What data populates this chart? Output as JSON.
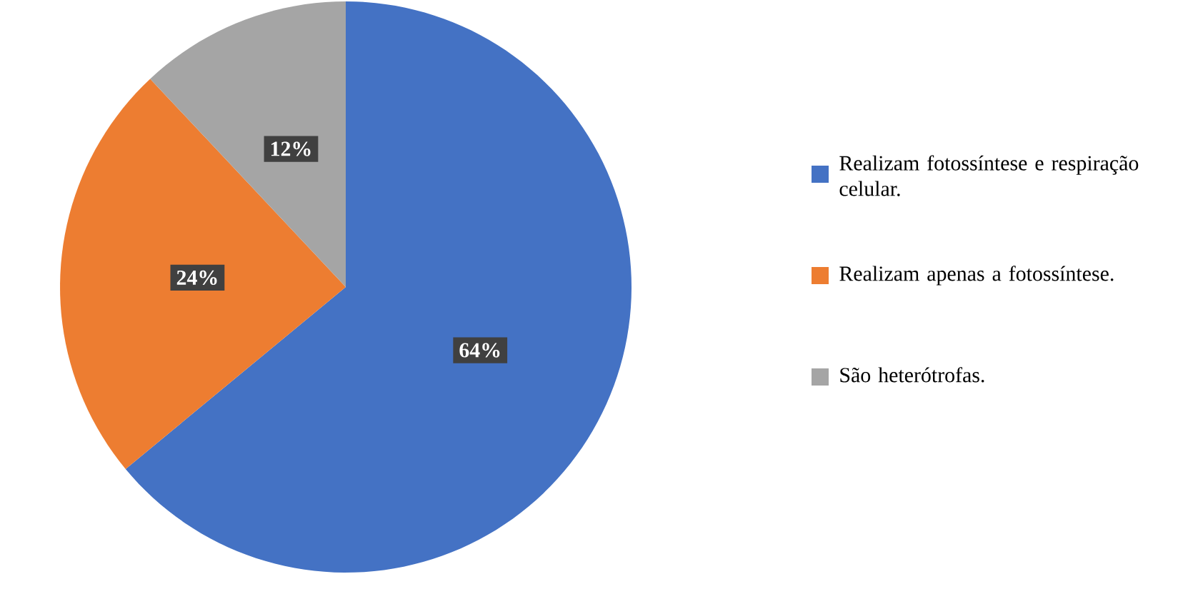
{
  "chart_data": {
    "type": "pie",
    "categories": [
      "Realizam fotossíntese e respiração celular.",
      "Realizam apenas a fotossíntese.",
      "São heterótrofas."
    ],
    "values": [
      64,
      24,
      12
    ],
    "value_labels": [
      "64%",
      "24%",
      "12%"
    ],
    "colors": [
      "#4472c4",
      "#ed7d31",
      "#a5a5a5"
    ],
    "legend": "right"
  }
}
